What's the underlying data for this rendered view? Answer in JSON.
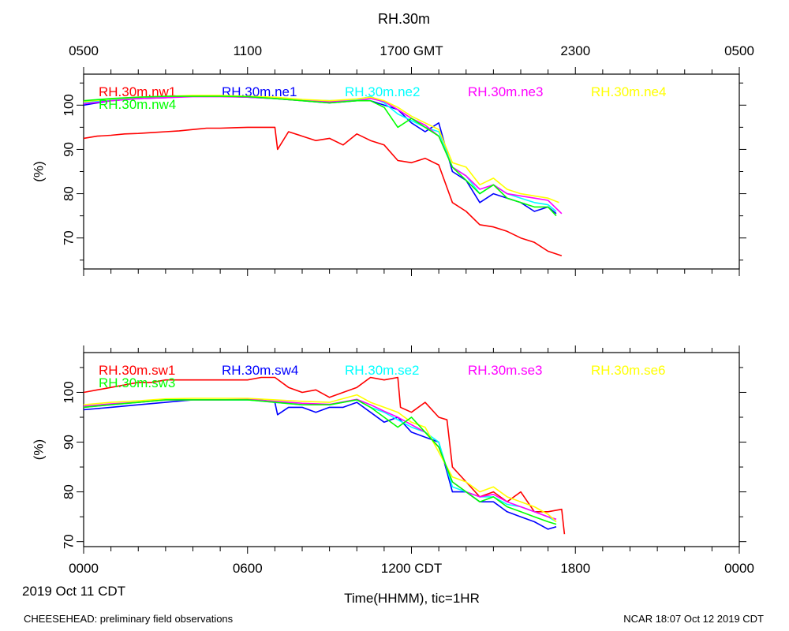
{
  "chart_data": [
    {
      "type": "line",
      "title": "RH.30m",
      "ylabel": "(%)",
      "ylim": [
        63,
        107
      ],
      "yticks": [
        70,
        80,
        90,
        100
      ],
      "xlim": [
        0,
        24
      ],
      "top_axis_ticks": [
        {
          "x": 0,
          "label": "0500"
        },
        {
          "x": 6,
          "label": "1100"
        },
        {
          "x": 12,
          "label": "1700 GMT"
        },
        {
          "x": 18,
          "label": "2300"
        },
        {
          "x": 24,
          "label": "0500"
        }
      ],
      "legend": "top-inside",
      "series": [
        {
          "name": "RH.30m.nw1",
          "color": "#ff0000",
          "x": [
            0,
            0.5,
            1,
            1.5,
            2,
            2.5,
            3,
            3.5,
            4,
            4.5,
            5,
            5.5,
            6,
            6.5,
            7,
            7.1,
            7.5,
            8,
            8.5,
            9,
            9.5,
            10,
            10.5,
            11,
            11.5,
            12,
            12.5,
            13,
            13.5,
            14,
            14.5,
            15,
            15.5,
            16,
            16.5,
            17,
            17.5
          ],
          "y": [
            92.5,
            93,
            93.2,
            93.5,
            93.6,
            93.8,
            94,
            94.2,
            94.5,
            94.8,
            94.8,
            94.9,
            95,
            95,
            95,
            90,
            94,
            93,
            92,
            92.5,
            91,
            93.5,
            92,
            91,
            87.5,
            87,
            88,
            86.5,
            78,
            76,
            73,
            72.5,
            71.5,
            70,
            69,
            67,
            66
          ]
        },
        {
          "name": "RH.30m.ne1",
          "color": "#0000ff",
          "x": [
            0,
            1,
            2,
            3,
            4,
            5,
            6,
            7,
            8,
            9,
            10,
            10.5,
            11,
            11.5,
            12,
            12.5,
            13,
            13.5,
            14,
            14.5,
            15,
            15.5,
            16,
            16.5,
            17,
            17.3
          ],
          "y": [
            100,
            101,
            101.5,
            101.7,
            102,
            102,
            101.8,
            101.5,
            101,
            100.5,
            101,
            101,
            100,
            99,
            96,
            94,
            96,
            85,
            83,
            78,
            80,
            79,
            78,
            76,
            77,
            75.5
          ]
        },
        {
          "name": "RH.30m.ne2",
          "color": "#00ffff",
          "x": [
            0,
            1,
            2,
            3,
            4,
            5,
            6,
            7,
            8,
            9,
            10,
            10.5,
            11,
            11.5,
            12,
            12.5,
            13,
            13.5,
            14,
            14.5,
            15,
            15.5,
            16,
            16.5,
            17,
            17.3
          ],
          "y": [
            100.5,
            101.2,
            101.6,
            101.8,
            102,
            102,
            101.9,
            101.6,
            101.2,
            101,
            101.2,
            102,
            100.5,
            98,
            96.5,
            95,
            94,
            86,
            84,
            80,
            82,
            80,
            79,
            78,
            77.5,
            76
          ]
        },
        {
          "name": "RH.30m.ne3",
          "color": "#ff00ff",
          "x": [
            0,
            1,
            2,
            3,
            4,
            5,
            6,
            7,
            8,
            9,
            10,
            10.5,
            11,
            11.5,
            12,
            12.5,
            13,
            13.5,
            14,
            14.5,
            15,
            15.5,
            16,
            16.5,
            17,
            17.5
          ],
          "y": [
            100.3,
            101,
            101.5,
            101.7,
            101.9,
            101.9,
            101.8,
            101.5,
            101,
            100.8,
            101,
            101.5,
            100.8,
            99,
            97,
            95.5,
            93,
            86,
            84,
            81,
            82,
            80,
            79.5,
            79,
            78.5,
            75.5
          ]
        },
        {
          "name": "RH.30m.ne4",
          "color": "#ffff00",
          "x": [
            0,
            1,
            2,
            3,
            4,
            5,
            6,
            7,
            8,
            9,
            10,
            10.5,
            11,
            11.5,
            12,
            12.5,
            13,
            13.5,
            14,
            14.5,
            15,
            15.5,
            16,
            16.5,
            17,
            17.4
          ],
          "y": [
            100.8,
            101.4,
            101.8,
            102,
            102.2,
            102.2,
            102,
            101.8,
            101.3,
            101,
            101.4,
            101.8,
            101,
            99.5,
            97.5,
            96,
            94.5,
            87,
            86,
            82,
            83.5,
            81,
            80,
            79.5,
            79,
            78
          ]
        },
        {
          "name": "RH.30m.nw4",
          "color": "#00ff00",
          "x": [
            0,
            1,
            2,
            3,
            4,
            5,
            6,
            7,
            8,
            9,
            10,
            10.5,
            11,
            11.5,
            12,
            12.5,
            13,
            13.5,
            14,
            14.5,
            15,
            15.5,
            16,
            16.5,
            17,
            17.3
          ],
          "y": [
            101,
            101.5,
            101.8,
            102,
            102,
            102,
            101.9,
            101.5,
            101,
            100.5,
            101,
            101,
            99.5,
            95,
            97,
            95,
            93,
            86,
            83,
            80,
            82,
            79,
            78,
            77,
            77,
            75
          ]
        }
      ]
    },
    {
      "type": "line",
      "ylabel": "(%)",
      "ylim": [
        69,
        108
      ],
      "yticks": [
        70,
        80,
        90,
        100
      ],
      "xlim": [
        0,
        24
      ],
      "bottom_axis_ticks": [
        {
          "x": 0,
          "label": "0000"
        },
        {
          "x": 6,
          "label": "0600"
        },
        {
          "x": 12,
          "label": "1200 CDT"
        },
        {
          "x": 18,
          "label": "1800"
        },
        {
          "x": 24,
          "label": "0000"
        }
      ],
      "xlabel": "Time(HHMM), tic=1HR",
      "date_label": "2019 Oct 11 CDT",
      "legend": "top-inside",
      "series": [
        {
          "name": "RH.30m.sw1",
          "color": "#ff0000",
          "x": [
            0,
            0.5,
            1,
            1.5,
            2,
            2.5,
            3,
            3.5,
            4,
            4.5,
            5,
            5.5,
            6,
            6.5,
            7,
            7.5,
            8,
            8.5,
            9,
            9.5,
            10,
            10.5,
            11,
            11.5,
            11.6,
            12,
            12.5,
            13,
            13.3,
            13.5,
            14,
            14.5,
            15,
            15.5,
            16,
            16.5,
            17,
            17.5,
            17.6
          ],
          "y": [
            100,
            100.5,
            101,
            101.5,
            102,
            102,
            102.5,
            102.5,
            102.5,
            102.5,
            102.5,
            102.5,
            102.5,
            103,
            103,
            101,
            100,
            100.5,
            99,
            100,
            101,
            103,
            102.5,
            103,
            97,
            96,
            98,
            95,
            94.5,
            85,
            82,
            79,
            80,
            78,
            80,
            76,
            76,
            76.5,
            71.5
          ]
        },
        {
          "name": "RH.30m.sw4",
          "color": "#0000ff",
          "x": [
            0,
            1,
            2,
            3,
            4,
            5,
            6,
            6.5,
            7,
            7.1,
            7.5,
            8,
            8.5,
            9,
            9.5,
            10,
            10.5,
            11,
            11.5,
            12,
            12.5,
            13,
            13.5,
            14,
            14.5,
            15,
            15.5,
            16,
            16.5,
            17,
            17.3
          ],
          "y": [
            96.5,
            97,
            97.5,
            98,
            98.5,
            98.5,
            98.5,
            98.5,
            98,
            95.5,
            97,
            97,
            96,
            97,
            97,
            98,
            96,
            94,
            95,
            92,
            91,
            90,
            80,
            80,
            78,
            78,
            76,
            75,
            74,
            72.5,
            73
          ]
        },
        {
          "name": "RH.30m.se2",
          "color": "#00ffff",
          "x": [
            0,
            1,
            2,
            3,
            4,
            5,
            6,
            7,
            8,
            9,
            10,
            10.5,
            11,
            11.5,
            12,
            12.5,
            13,
            13.5,
            14,
            14.5,
            15,
            15.5,
            16,
            16.5,
            17,
            17.3
          ],
          "y": [
            97,
            97.5,
            98,
            98.5,
            98.5,
            98.5,
            98.5,
            98,
            97.5,
            97.5,
            98.5,
            97,
            96,
            94.5,
            93,
            92,
            90,
            81,
            80,
            79,
            79,
            77.5,
            77,
            76,
            75,
            74
          ]
        },
        {
          "name": "RH.30m.se3",
          "color": "#ff00ff",
          "x": [
            0,
            1,
            2,
            3,
            4,
            5,
            6,
            7,
            8,
            9,
            10,
            10.5,
            11,
            11.5,
            12,
            12.5,
            13,
            13.5,
            14,
            14.5,
            15,
            15.5,
            16,
            16.5,
            17,
            17.3
          ],
          "y": [
            97.2,
            97.7,
            98,
            98.5,
            98.5,
            98.5,
            98.6,
            98.2,
            97.8,
            97.6,
            98.6,
            97.5,
            96.2,
            95,
            93.5,
            92,
            89,
            82,
            80,
            79,
            79.5,
            78,
            77,
            76,
            75,
            74.5
          ]
        },
        {
          "name": "RH.30m.se6",
          "color": "#ffff00",
          "x": [
            0,
            1,
            2,
            3,
            4,
            5,
            6,
            7,
            8,
            9,
            10,
            10.5,
            11,
            11.5,
            12,
            12.5,
            13,
            13.5,
            14,
            14.5,
            15,
            15.5,
            16,
            16.5,
            17,
            17.3
          ],
          "y": [
            97.5,
            98,
            98.3,
            98.7,
            98.8,
            98.8,
            98.8,
            98.5,
            98.2,
            98,
            99.5,
            98,
            97,
            96,
            94,
            93,
            88,
            83,
            82,
            80,
            81,
            79,
            78,
            77,
            75.5,
            74
          ]
        },
        {
          "name": "RH.30m.sw3",
          "color": "#00ff00",
          "x": [
            0,
            1,
            2,
            3,
            4,
            5,
            6,
            7,
            8,
            9,
            10,
            10.5,
            11,
            11.5,
            12,
            12.5,
            13,
            13.5,
            14,
            14.5,
            15,
            15.5,
            16,
            16.5,
            17,
            17.3
          ],
          "y": [
            97,
            97.5,
            98,
            98.5,
            98.5,
            98.5,
            98.5,
            98,
            97.5,
            97.5,
            98.5,
            97,
            95,
            93,
            95,
            92,
            89,
            82,
            80,
            78,
            79,
            77,
            76,
            75,
            74,
            73.5
          ]
        }
      ]
    }
  ],
  "footer": {
    "left": "CHEESEHEAD: preliminary field observations",
    "right": "NCAR 18:07 Oct 12 2019 CDT"
  }
}
